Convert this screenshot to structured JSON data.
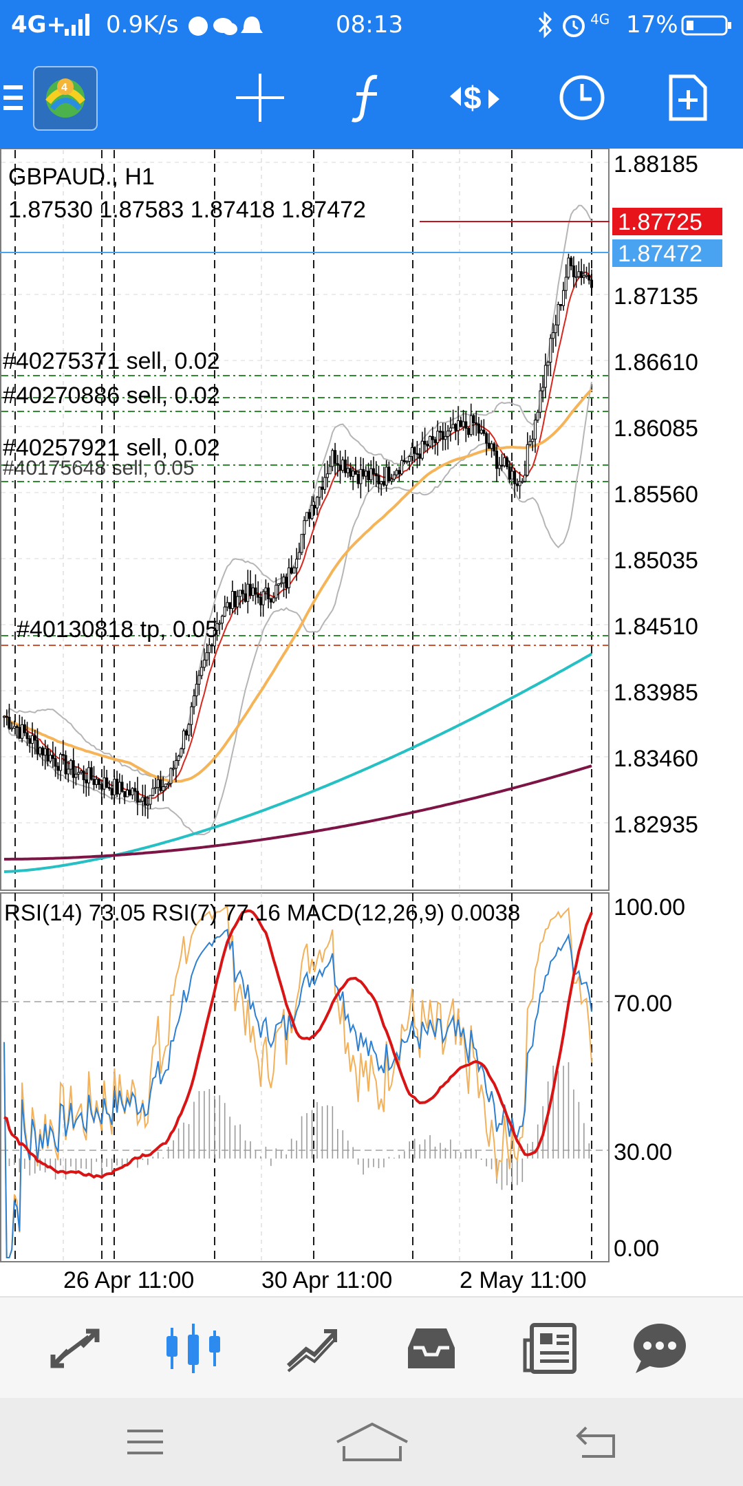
{
  "status_bar": {
    "network": "4G+",
    "speed": "0.9K/s",
    "time": "08:13",
    "network2": "4G",
    "battery": "17%"
  },
  "toolbar": {
    "icons": [
      "menu-icon",
      "app-logo",
      "crosshair-icon",
      "indicators-icon",
      "trade-icon",
      "timeframe-icon",
      "new-order-icon"
    ],
    "accent": "#1f7ef0"
  },
  "chart": {
    "symbol": "GBPAUD.",
    "separator": ",",
    "timeframe": "H1",
    "ohlc": "1.87530 1.87583 1.87418 1.87472",
    "price_labels": [
      "1.88185",
      "1.87135",
      "1.86610",
      "1.86085",
      "1.85560",
      "1.85035",
      "1.84510",
      "1.83985",
      "1.83460",
      "1.82935"
    ],
    "ask_label": "1.87725",
    "bid_label": "1.87472",
    "orders": [
      {
        "text": "#40275371 sell, 0.02"
      },
      {
        "text": "#40270886 sell, 0.02"
      },
      {
        "text": "#40257921 sell, 0.02"
      },
      {
        "text": "#40175648 sell, 0.05"
      },
      {
        "text": "#40130818 tp, 0.05"
      }
    ],
    "sub_header": "RSI(14) 73.05 RSI(7) 77.16 MACD(12,26,9) 0.0038",
    "sub_levels": [
      "100.00",
      "70.00",
      "30.00",
      "0.00"
    ],
    "date_labels": [
      "26 Apr 11:00",
      "30 Apr 11:00",
      "2 May 11:00"
    ],
    "colors": {
      "ask": "#e8141c",
      "bid": "#4aa3f0",
      "ma_fast": "#d9261c",
      "ma_mid": "#f5b458",
      "ma_slow": "#26bfc4",
      "ma_long": "#7d1446",
      "rsi14": "#2c7fd1",
      "rsi7": "#f2b15a",
      "macd": "#d81414"
    }
  },
  "chart_data": {
    "type": "line",
    "price_axis": [
      1.82935,
      1.88185
    ],
    "series": [
      {
        "name": "RSI(14)",
        "last": 73.05
      },
      {
        "name": "RSI(7)",
        "last": 77.16
      },
      {
        "name": "MACD(12,26,9)",
        "last": 0.0038
      }
    ],
    "close_path": [
      1.8395,
      1.8378,
      1.8362,
      1.835,
      1.8343,
      1.8335,
      1.833,
      1.8342,
      1.84,
      1.847,
      1.8495,
      1.849,
      1.8502,
      1.856,
      1.8605,
      1.859,
      1.8585,
      1.86,
      1.8612,
      1.8622,
      1.863,
      1.86,
      1.8582,
      1.867,
      1.8757,
      1.8747
    ],
    "ylim": [
      1.8265,
      1.884
    ]
  },
  "bottom_nav": {
    "items": [
      "quotes-icon",
      "chart-icon",
      "trade-icon",
      "history-icon",
      "news-icon",
      "chat-icon"
    ],
    "active": 1
  },
  "system_nav": {
    "items": [
      "menu-icon",
      "home-icon",
      "back-icon"
    ]
  }
}
